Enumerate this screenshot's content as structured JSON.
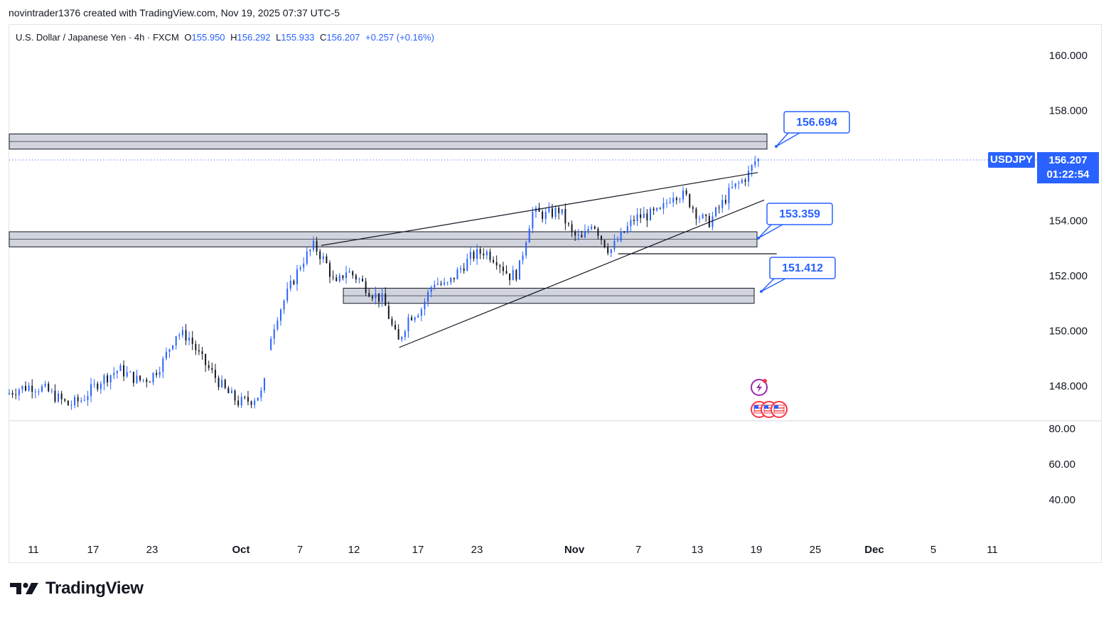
{
  "header": {
    "caption": "novintrader1376 created with TradingView.com, Nov 19, 2025 07:37 UTC-5"
  },
  "legend": {
    "instrument": "U.S. Dollar / Japanese Yen · 4h · FXCM",
    "open_label": "O",
    "open": "155.950",
    "high_label": "H",
    "high": "156.292",
    "low_label": "L",
    "low": "155.933",
    "close_label": "C",
    "close": "156.207",
    "change": "+0.257 (+0.16%)"
  },
  "badges": {
    "symbol": "USDJPY",
    "last_price": "156.207",
    "countdown": "01:22:54"
  },
  "footer": {
    "brand": "TradingView"
  },
  "colors": {
    "up": "#2962ff",
    "down": "#131722",
    "accent": "#2962ff",
    "zone_fill": "#d1d4dc"
  },
  "chart_data": {
    "type": "candlestick",
    "title": "U.S. Dollar / Japanese Yen · 4h · FXCM",
    "y_ticks": [
      "160.000",
      "158.000",
      "154.000",
      "152.000",
      "150.000",
      "148.000"
    ],
    "ylim": [
      147.2,
      161.4
    ],
    "x_ticks": [
      "11",
      "17",
      "23",
      "Oct",
      "7",
      "12",
      "17",
      "23",
      "Nov",
      "7",
      "13",
      "19",
      "25",
      "Dec",
      "5",
      "11"
    ],
    "x_tick_bold": [
      "Oct",
      "Nov",
      "Dec"
    ],
    "osc_ticks": [
      "80.00",
      "60.00",
      "40.00"
    ],
    "price_path": [
      {
        "t": 0,
        "p": 147.7
      },
      {
        "t": 10,
        "p": 147.9
      },
      {
        "t": 20,
        "p": 148.0
      },
      {
        "t": 30,
        "p": 147.9
      },
      {
        "t": 40,
        "p": 147.6
      },
      {
        "t": 50,
        "p": 147.3
      },
      {
        "t": 60,
        "p": 147.5
      },
      {
        "t": 75,
        "p": 148.2
      },
      {
        "t": 90,
        "p": 148.6
      },
      {
        "t": 105,
        "p": 148.2
      },
      {
        "t": 115,
        "p": 148.3
      },
      {
        "t": 125,
        "p": 148.9
      },
      {
        "t": 135,
        "p": 149.9
      },
      {
        "t": 145,
        "p": 149.8
      },
      {
        "t": 155,
        "p": 149.0
      },
      {
        "t": 165,
        "p": 148.4
      },
      {
        "t": 175,
        "p": 147.8
      },
      {
        "t": 185,
        "p": 147.4
      },
      {
        "t": 195,
        "p": 147.5
      },
      {
        "t": 205,
        "p": 147.8
      },
      {
        "t": 207,
        "p": 149.3
      },
      {
        "t": 215,
        "p": 150.5
      },
      {
        "t": 225,
        "p": 151.5
      },
      {
        "t": 235,
        "p": 152.5
      },
      {
        "t": 245,
        "p": 153.1
      },
      {
        "t": 255,
        "p": 152.4
      },
      {
        "t": 262,
        "p": 151.6
      },
      {
        "t": 270,
        "p": 152.2
      },
      {
        "t": 280,
        "p": 151.9
      },
      {
        "t": 290,
        "p": 151.4
      },
      {
        "t": 300,
        "p": 151.1
      },
      {
        "t": 308,
        "p": 150.0
      },
      {
        "t": 312,
        "p": 149.6
      },
      {
        "t": 320,
        "p": 150.5
      },
      {
        "t": 330,
        "p": 150.8
      },
      {
        "t": 340,
        "p": 151.8
      },
      {
        "t": 350,
        "p": 151.6
      },
      {
        "t": 360,
        "p": 152.2
      },
      {
        "t": 370,
        "p": 152.7
      },
      {
        "t": 380,
        "p": 152.9
      },
      {
        "t": 390,
        "p": 152.6
      },
      {
        "t": 400,
        "p": 152.0
      },
      {
        "t": 407,
        "p": 152.1
      },
      {
        "t": 413,
        "p": 153.3
      },
      {
        "t": 418,
        "p": 154.3
      },
      {
        "t": 430,
        "p": 154.2
      },
      {
        "t": 440,
        "p": 154.4
      },
      {
        "t": 450,
        "p": 153.5
      },
      {
        "t": 458,
        "p": 153.3
      },
      {
        "t": 466,
        "p": 154.0
      },
      {
        "t": 474,
        "p": 153.3
      },
      {
        "t": 480,
        "p": 152.9
      },
      {
        "t": 490,
        "p": 153.5
      },
      {
        "t": 500,
        "p": 154.1
      },
      {
        "t": 510,
        "p": 154.2
      },
      {
        "t": 520,
        "p": 154.3
      },
      {
        "t": 530,
        "p": 155.0
      },
      {
        "t": 540,
        "p": 154.9
      },
      {
        "t": 550,
        "p": 154.2
      },
      {
        "t": 558,
        "p": 153.9
      },
      {
        "t": 566,
        "p": 154.4
      },
      {
        "t": 576,
        "p": 155.1
      },
      {
        "t": 584,
        "p": 155.4
      },
      {
        "t": 590,
        "p": 155.7
      },
      {
        "t": 596,
        "p": 156.207
      }
    ],
    "zones": [
      {
        "label": "156.694",
        "top": 157.15,
        "bottom": 156.6
      },
      {
        "label": "153.359",
        "top": 153.6,
        "bottom": 153.05
      },
      {
        "label": "151.412",
        "top": 151.55,
        "bottom": 151.0
      }
    ],
    "callouts": [
      "156.694",
      "153.359",
      "151.412"
    ],
    "trendlines": [
      {
        "from": {
          "t": 248,
          "p": 153.1
        },
        "to": {
          "t": 595,
          "p": 155.75
        }
      },
      {
        "from": {
          "t": 310,
          "p": 149.4
        },
        "to": {
          "t": 600,
          "p": 154.75
        }
      },
      {
        "from": {
          "t": 484,
          "p": 152.8
        },
        "to": {
          "t": 610,
          "p": 152.8
        }
      }
    ],
    "event_icons": [
      "lightning-event-icon",
      "us-flag-event-icon"
    ]
  }
}
